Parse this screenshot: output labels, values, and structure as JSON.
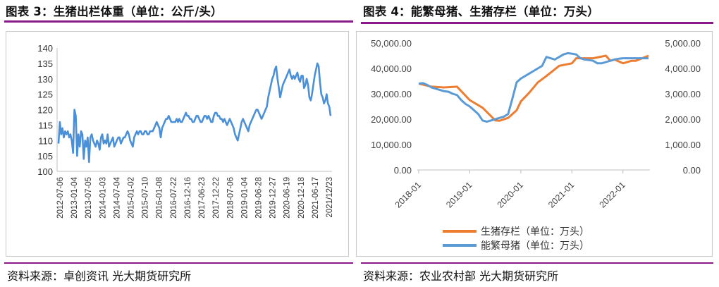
{
  "left": {
    "title": "图表 3：生猪出栏体重（单位：公斤/头）",
    "source": "资料来源：卓创资讯 光大期货研究所"
  },
  "right": {
    "title": "图表 4：能繁母猪、生猪存栏（单位：万头）",
    "source": "资料来源：农业农村部 光大期货研究所"
  },
  "chart_data": [
    {
      "type": "line",
      "title": "生猪出栏体重（单位：公斤/头）",
      "ylim": [
        100,
        140
      ],
      "yticks": [
        100,
        105,
        110,
        115,
        120,
        125,
        130,
        135,
        140
      ],
      "xlabels": [
        "2012-07-06",
        "2013-01-04",
        "2013-07-05",
        "2014-01-03",
        "2014-07-04",
        "2015-01-02",
        "2015-07-10",
        "2016-01-08",
        "2016-07-22",
        "2016-12-16",
        "2017-06-23",
        "2017-12-22",
        "2018-07-06",
        "2019-01-04",
        "2019-06-28",
        "2019-12-27",
        "2020-06-19",
        "2020-12-18",
        "2021-06-17",
        "2021/12/23"
      ],
      "color": "#4a90d9",
      "series": [
        {
          "values": [
            109,
            116,
            112,
            114,
            111,
            113,
            112,
            113,
            111,
            112,
            110,
            106,
            120,
            118,
            105,
            112,
            108,
            113,
            112,
            104,
            110,
            108,
            111,
            103,
            111,
            112,
            110,
            109,
            108,
            110,
            109,
            107,
            111,
            112,
            109,
            110,
            109,
            112,
            108,
            109,
            110,
            111,
            108,
            109,
            110,
            111,
            111,
            109,
            110,
            111,
            111,
            112,
            113,
            112,
            110,
            109,
            108,
            111,
            112,
            113,
            112,
            113,
            113,
            112,
            112,
            113,
            113,
            112,
            112,
            113,
            113,
            113,
            114,
            115,
            116,
            115,
            114,
            111,
            114,
            115,
            116,
            117,
            117,
            118,
            117,
            116,
            116,
            116,
            116,
            117,
            116,
            117,
            116,
            116,
            117,
            118,
            119,
            118,
            118,
            117,
            117,
            116,
            116,
            117,
            118,
            118,
            117,
            116,
            116,
            117,
            118,
            118,
            117,
            118,
            117,
            116,
            116,
            118,
            119,
            119,
            118,
            118,
            117,
            117,
            116,
            117,
            116,
            115,
            116,
            117,
            116,
            115,
            114,
            112,
            111,
            110,
            112,
            114,
            116,
            117,
            116,
            115,
            114,
            113,
            115,
            116,
            117,
            118,
            119,
            120,
            120,
            119,
            118,
            117,
            118,
            119,
            120,
            121,
            124,
            126,
            128,
            130,
            131,
            133,
            134,
            130,
            127,
            124,
            126,
            128,
            129,
            130,
            131,
            132,
            133,
            131,
            130,
            131,
            130,
            131,
            132,
            130,
            129,
            131,
            131,
            127,
            128,
            130,
            128,
            124,
            123,
            125,
            128,
            131,
            133,
            135,
            134,
            129,
            125,
            124,
            122,
            123,
            125,
            122,
            121,
            118
          ]
        }
      ]
    },
    {
      "type": "line",
      "title": "能繁母猪、生猪存栏（单位：万头）",
      "ylim_left": [
        0,
        50000
      ],
      "ylim_right": [
        0,
        5000
      ],
      "yticks_left": [
        "0.00",
        "10,000.00",
        "20,000.00",
        "30,000.00",
        "40,000.00",
        "50,000.00"
      ],
      "yticks_right": [
        "0.00",
        "1,000.00",
        "2,000.00",
        "3,000.00",
        "4,000.00",
        "5,000.00"
      ],
      "categories": [
        "2018-01",
        "2019-01",
        "2020-01",
        "2021-01",
        "2022-01"
      ],
      "legend": [
        "生猪存栏（单位：万头）",
        "能繁母猪（单位：万头）"
      ],
      "series": [
        {
          "name": "生猪存栏（单位：万头）",
          "axis": "left",
          "color": "#ed7d31",
          "x": [
            0,
            3,
            6,
            9,
            12,
            15,
            18,
            19,
            21,
            23,
            24,
            26,
            28,
            30,
            33,
            36,
            37,
            39,
            40,
            41,
            44,
            45,
            46,
            48,
            50,
            51,
            54
          ],
          "values": [
            34000,
            32800,
            32500,
            32800,
            27500,
            24500,
            19500,
            19400,
            20500,
            23500,
            27000,
            30500,
            34500,
            37000,
            41000,
            42000,
            44000,
            44000,
            44000,
            44000,
            45000,
            43000,
            43500,
            42000,
            43000,
            43000,
            45000
          ]
        },
        {
          "name": "能繁母猪（单位：万头）",
          "axis": "right",
          "color": "#5b9bd5",
          "x": [
            0,
            1,
            2,
            3,
            4,
            5,
            6,
            7,
            8,
            9,
            10,
            11,
            12,
            13,
            14,
            15,
            16,
            17,
            18,
            19,
            20,
            21,
            22,
            23,
            24,
            25,
            26,
            27,
            28,
            29,
            30,
            31,
            32,
            33,
            34,
            35,
            36,
            37,
            38,
            39,
            40,
            41,
            42,
            43,
            44,
            45,
            46,
            47,
            48,
            49,
            50,
            51,
            52,
            53,
            54
          ],
          "values": [
            3400,
            3420,
            3350,
            3250,
            3200,
            3150,
            3100,
            3080,
            3000,
            2950,
            2750,
            2600,
            2500,
            2350,
            2200,
            1950,
            1900,
            1950,
            2000,
            2050,
            2100,
            2200,
            2800,
            3450,
            3600,
            3700,
            3800,
            3900,
            4000,
            4100,
            4450,
            4400,
            4350,
            4450,
            4550,
            4600,
            4580,
            4550,
            4400,
            4350,
            4330,
            4300,
            4200,
            4200,
            4250,
            4300,
            4350,
            4380,
            4400,
            4400,
            4400,
            4400,
            4400,
            4400,
            4400
          ]
        }
      ]
    }
  ]
}
